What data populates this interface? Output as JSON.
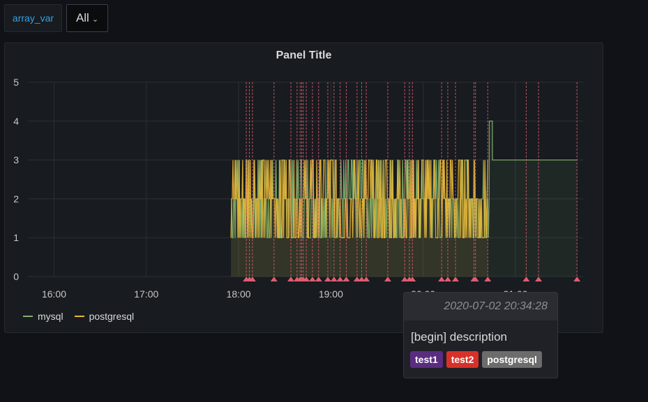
{
  "variables": {
    "label": "array_var",
    "value": "All"
  },
  "panel": {
    "title": "Panel Title"
  },
  "chart_data": {
    "type": "line",
    "xlabel": "",
    "ylabel": "",
    "ylim": [
      0,
      5
    ],
    "x_ticks": [
      "16:00",
      "17:00",
      "18:00",
      "19:00",
      "20:00",
      "21:00"
    ],
    "y_ticks": [
      0,
      1,
      2,
      3,
      4,
      5
    ],
    "grid": true,
    "legend": "bottom-left",
    "series": [
      {
        "name": "mysql",
        "color": "#7eb26d",
        "fill": true,
        "segments": [
          {
            "from": "17:55",
            "to": "20:43",
            "pattern": "noisy",
            "range": [
              1,
              3
            ]
          },
          {
            "from": "20:43",
            "to": "20:45",
            "value": 4
          },
          {
            "from": "20:45",
            "to": "21:40",
            "value": 3
          }
        ]
      },
      {
        "name": "postgresql",
        "color": "#eab839",
        "fill": true,
        "segments": [
          {
            "from": "17:55",
            "to": "20:42",
            "pattern": "noisy",
            "range": [
              1,
              3
            ]
          }
        ]
      }
    ],
    "annotation_times": [
      "18:05",
      "18:07",
      "18:09",
      "18:23",
      "18:34",
      "18:38",
      "18:40",
      "18:41",
      "18:42",
      "18:44",
      "18:48",
      "18:52",
      "18:58",
      "19:02",
      "19:06",
      "19:10",
      "19:17",
      "19:20",
      "19:23",
      "19:37",
      "19:48",
      "19:51",
      "19:53",
      "20:12",
      "20:16",
      "20:21",
      "20:33",
      "20:34",
      "20:42",
      "21:07",
      "21:15",
      "21:40"
    ],
    "annotation_color": "#e05d6f"
  },
  "tooltip": {
    "time": "2020-07-02 20:34:28",
    "text": "[begin] description",
    "tags": [
      {
        "label": "test1",
        "color": "#5a2d80"
      },
      {
        "label": "test2",
        "color": "#d8312a"
      },
      {
        "label": "postgresql",
        "color": "#6c6c6c"
      }
    ]
  }
}
